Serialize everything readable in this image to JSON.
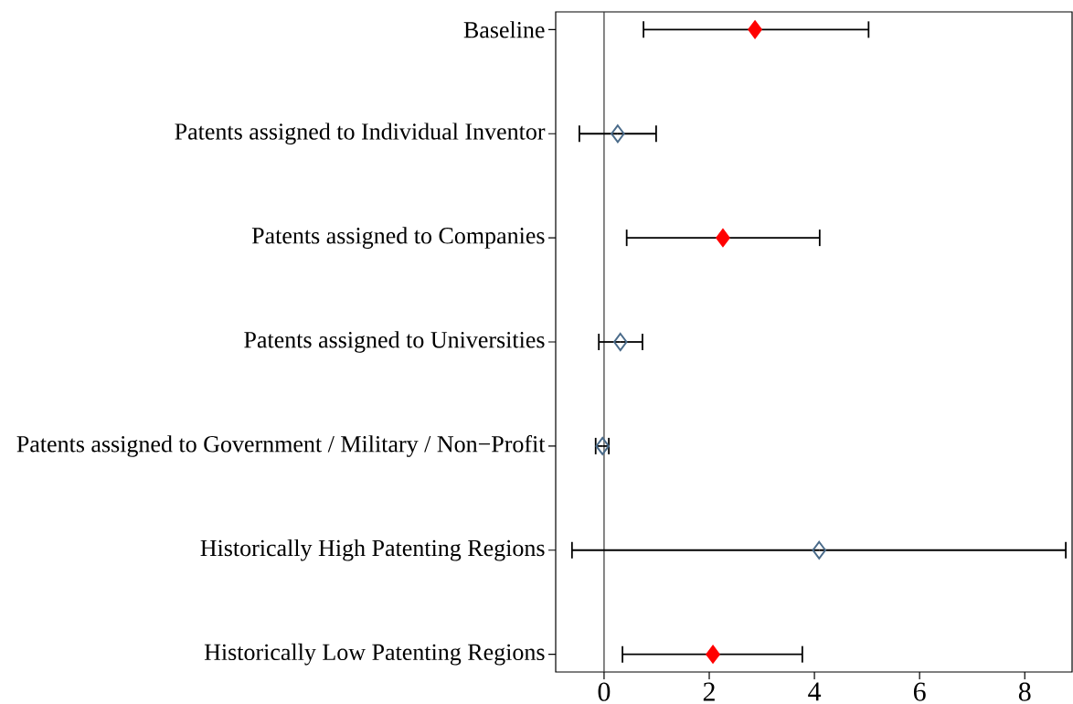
{
  "chart_data": {
    "type": "scatter",
    "orientation": "horizontal",
    "categories": [
      "Baseline",
      "Patents assigned to Individual Inventor",
      "Patents assigned to Companies",
      "Patents assigned to Universities",
      "Patents assigned to Government / Military / Non−Profit",
      "Historically High Patenting Regions",
      "Historically Low Patenting Regions"
    ],
    "series": [
      {
        "color": "#ff0000",
        "values": [
          2.87,
          null,
          2.26,
          null,
          null,
          null,
          2.07
        ],
        "errors": [
          [
            0.75,
            5.03
          ],
          null,
          [
            0.43,
            4.1
          ],
          null,
          null,
          null,
          [
            0.35,
            3.77
          ]
        ]
      },
      {
        "color": "#4a6b8a",
        "values": [
          null,
          0.26,
          null,
          0.31,
          -0.03,
          4.09,
          null
        ],
        "errors": [
          null,
          [
            -0.47,
            0.99
          ],
          null,
          [
            -0.1,
            0.73
          ],
          [
            -0.16,
            0.09
          ],
          [
            -0.61,
            8.78
          ],
          null
        ]
      }
    ],
    "marker": "diamond",
    "xlim": [
      -0.92,
      8.9
    ],
    "xticks": [
      0,
      2,
      4,
      6,
      8
    ],
    "ref_lines": [
      {
        "axis": "x",
        "value": 0,
        "color": "#333333"
      }
    ]
  }
}
